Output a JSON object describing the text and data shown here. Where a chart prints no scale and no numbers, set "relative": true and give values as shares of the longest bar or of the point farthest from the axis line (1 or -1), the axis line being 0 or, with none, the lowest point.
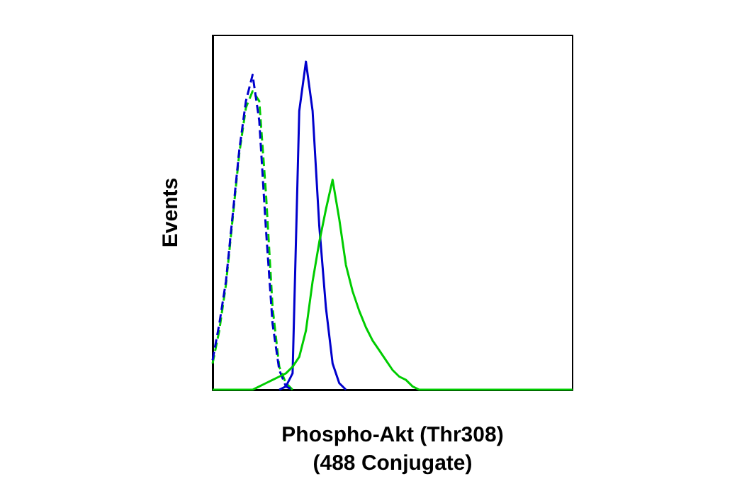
{
  "chart_data": {
    "type": "line",
    "relative": true,
    "xlabel": "Phospho-Akt (Thr308)\n(488 Conjugate)",
    "ylabel": "Events",
    "grid": false,
    "categories": [
      null,
      null,
      null,
      null,
      null,
      null,
      null,
      null,
      null,
      null,
      null,
      null,
      null,
      null,
      null,
      null,
      null,
      null,
      null,
      null,
      null,
      null,
      null,
      null,
      null,
      null,
      null,
      null,
      null,
      null,
      null,
      null,
      null,
      null,
      null,
      null,
      null,
      null,
      null,
      null,
      null,
      null,
      null,
      null,
      null,
      null,
      null,
      null,
      null,
      null,
      null,
      null,
      null,
      null,
      null
    ],
    "series": [
      {
        "color": "#00cc00",
        "line_style": "dashed",
        "values": [
          0.08,
          0.18,
          0.32,
          0.52,
          0.72,
          0.86,
          0.91,
          0.88,
          0.6,
          0.25,
          0.07,
          0.02,
          0,
          null,
          null,
          null,
          null,
          null,
          null,
          null,
          null,
          null,
          null,
          null,
          null,
          null,
          null,
          null,
          null,
          null,
          null,
          null,
          null,
          null,
          null,
          null,
          null,
          null,
          null,
          null,
          null,
          null,
          null,
          null,
          null,
          null,
          null,
          null,
          null,
          null,
          null,
          null,
          null,
          null,
          null
        ]
      },
      {
        "color": "#0000cc",
        "line_style": "dashed",
        "values": [
          0.09,
          0.2,
          0.33,
          0.53,
          0.73,
          0.88,
          0.96,
          0.82,
          0.49,
          0.2,
          0.06,
          0.01,
          0,
          null,
          null,
          null,
          null,
          null,
          null,
          null,
          null,
          null,
          null,
          null,
          null,
          null,
          null,
          null,
          null,
          null,
          null,
          null,
          null,
          null,
          null,
          null,
          null,
          null,
          null,
          null,
          null,
          null,
          null,
          null,
          null,
          null,
          null,
          null,
          null,
          null,
          null,
          null,
          null,
          null,
          null
        ]
      },
      {
        "color": "#0000cc",
        "line_style": "solid",
        "values": [
          null,
          null,
          null,
          null,
          null,
          null,
          null,
          null,
          null,
          null,
          0,
          0.01,
          0.05,
          0.85,
          1,
          0.85,
          0.5,
          0.25,
          0.08,
          0.02,
          0,
          null,
          null,
          null,
          null,
          null,
          null,
          null,
          null,
          null,
          null,
          null,
          null,
          null,
          null,
          null,
          null,
          null,
          null,
          null,
          null,
          null,
          null,
          null,
          null,
          null,
          null,
          null,
          null,
          null,
          null,
          null,
          null,
          null,
          null
        ]
      },
      {
        "color": "#00cc00",
        "line_style": "solid",
        "values": [
          0,
          0,
          0,
          0,
          0,
          0,
          0,
          0.01,
          0.02,
          0.03,
          0.04,
          0.05,
          0.07,
          0.1,
          0.18,
          0.33,
          0.45,
          0.55,
          0.64,
          0.52,
          0.38,
          0.3,
          0.24,
          0.19,
          0.15,
          0.12,
          0.09,
          0.06,
          0.04,
          0.03,
          0.01,
          0,
          0,
          0,
          0,
          0,
          0,
          0,
          0,
          0,
          0,
          0,
          0,
          0,
          0,
          0,
          0,
          0,
          0,
          0,
          0,
          0,
          0,
          0,
          0
        ]
      }
    ]
  }
}
